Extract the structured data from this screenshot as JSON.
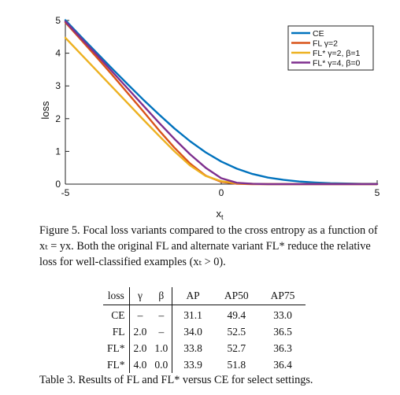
{
  "chart_data": {
    "type": "line",
    "xlabel": "x",
    "xlabel_sub": "t",
    "ylabel": "loss",
    "xlim": [
      -5,
      5
    ],
    "ylim": [
      0,
      5
    ],
    "x_ticks": [
      -5,
      0,
      5
    ],
    "y_ticks": [
      0,
      1,
      2,
      3,
      4,
      5
    ],
    "grid": false,
    "legend_placement": "top-right",
    "series": [
      {
        "name": "CE",
        "legend": "CE",
        "color": "#0072BD",
        "x": [
          -5,
          -4.5,
          -4,
          -3.5,
          -3,
          -2.5,
          -2,
          -1.5,
          -1,
          -0.5,
          0,
          0.5,
          1,
          1.5,
          2,
          2.5,
          3,
          3.5,
          4,
          4.5,
          5
        ],
        "y": [
          5.01,
          4.51,
          4.02,
          3.53,
          3.05,
          2.58,
          2.13,
          1.7,
          1.31,
          0.97,
          0.69,
          0.47,
          0.31,
          0.2,
          0.13,
          0.08,
          0.05,
          0.03,
          0.02,
          0.01,
          0.01
        ]
      },
      {
        "name": "FL γ=2",
        "legend": "FL γ=2",
        "color": "#D95319",
        "x": [
          -5,
          -4.5,
          -4,
          -3.5,
          -3,
          -2.5,
          -2,
          -1.5,
          -1,
          -0.5,
          0,
          0.5,
          1,
          1.5,
          2,
          2.5,
          3,
          3.5,
          4,
          4.5,
          5
        ],
        "y": [
          4.94,
          4.41,
          3.88,
          3.34,
          2.78,
          2.22,
          1.65,
          1.11,
          0.63,
          0.26,
          0.07,
          0.01,
          0.0,
          0.0,
          0.0,
          0.0,
          0.0,
          0.0,
          0.0,
          0.0,
          0.0
        ]
      },
      {
        "name": "FL* γ=2, β=1",
        "legend": "FL* γ=2, β=1",
        "color": "#EDB120",
        "x": [
          -5,
          -4.5,
          -4,
          -3.5,
          -3,
          -2.5,
          -2,
          -1.5,
          -1,
          -0.5,
          0,
          0.5,
          1,
          1.5,
          2,
          2.5,
          3,
          3.5,
          4,
          4.5,
          5
        ],
        "y": [
          4.47,
          3.97,
          3.47,
          2.97,
          2.47,
          1.97,
          1.48,
          1.0,
          0.57,
          0.25,
          0.09,
          0.03,
          0.01,
          0.0,
          0.0,
          0.0,
          0.0,
          0.0,
          0.0,
          0.0,
          0.0
        ]
      },
      {
        "name": "FL* γ=4, β=0",
        "legend": "FL* γ=4, β=0",
        "color": "#7E2F8E",
        "x": [
          -5,
          -4.5,
          -4,
          -3.5,
          -3,
          -2.5,
          -2,
          -1.5,
          -1,
          -0.5,
          0,
          0.5,
          1,
          1.5,
          2,
          2.5,
          3,
          3.5,
          4,
          4.5,
          5
        ],
        "y": [
          4.97,
          4.46,
          3.96,
          3.44,
          2.92,
          2.4,
          1.88,
          1.38,
          0.91,
          0.5,
          0.18,
          0.04,
          0.01,
          0.0,
          0.0,
          0.0,
          0.0,
          0.0,
          0.0,
          0.0,
          0.0
        ]
      }
    ]
  },
  "figure_caption": "Figure 5. Focal loss variants compared to the cross entropy as a function of xₜ = yx. Both the original FL and alternate variant FL* reduce the relative loss for well-classified examples (xₜ > 0).",
  "table": {
    "headers": [
      "loss",
      "γ",
      "β",
      "AP",
      "AP50",
      "AP75"
    ],
    "rows": [
      [
        "CE",
        "–",
        "–",
        "31.1",
        "49.4",
        "33.0"
      ],
      [
        "FL",
        "2.0",
        "–",
        "34.0",
        "52.5",
        "36.5"
      ],
      [
        "FL*",
        "2.0",
        "1.0",
        "33.8",
        "52.7",
        "36.3"
      ],
      [
        "FL*",
        "4.0",
        "0.0",
        "33.9",
        "51.8",
        "36.4"
      ]
    ]
  },
  "table_caption": "Table 3. Results of FL and FL* versus CE for select settings."
}
